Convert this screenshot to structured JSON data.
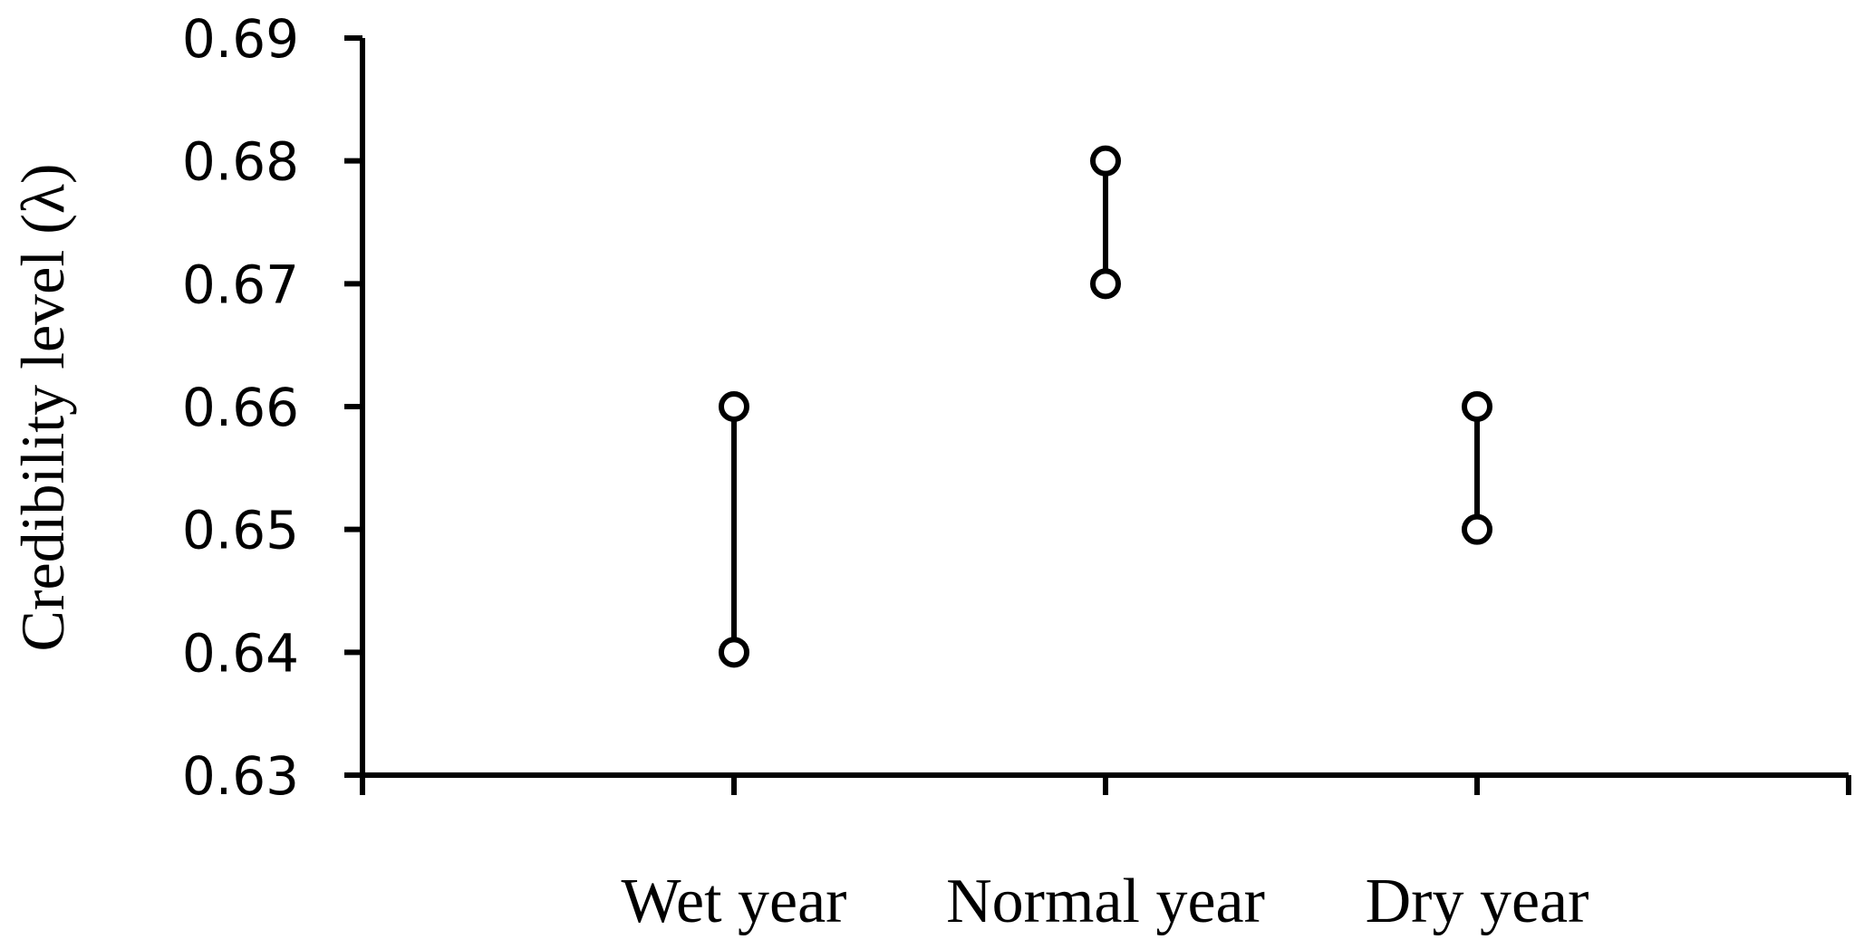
{
  "chart_data": {
    "type": "range",
    "title": "",
    "xlabel": "",
    "ylabel": "Credibility level (λ)",
    "categories": [
      "Wet year",
      "Normal year",
      "Dry year"
    ],
    "ranges": [
      {
        "category": "Wet year",
        "low": 0.64,
        "high": 0.66
      },
      {
        "category": "Normal year",
        "low": 0.67,
        "high": 0.68
      },
      {
        "category": "Dry year",
        "low": 0.65,
        "high": 0.66
      }
    ],
    "ylim": [
      0.63,
      0.69
    ],
    "yticks": [
      "0.63",
      "0.64",
      "0.65",
      "0.66",
      "0.67",
      "0.68",
      "0.69"
    ],
    "grid": false,
    "legend": "none"
  }
}
